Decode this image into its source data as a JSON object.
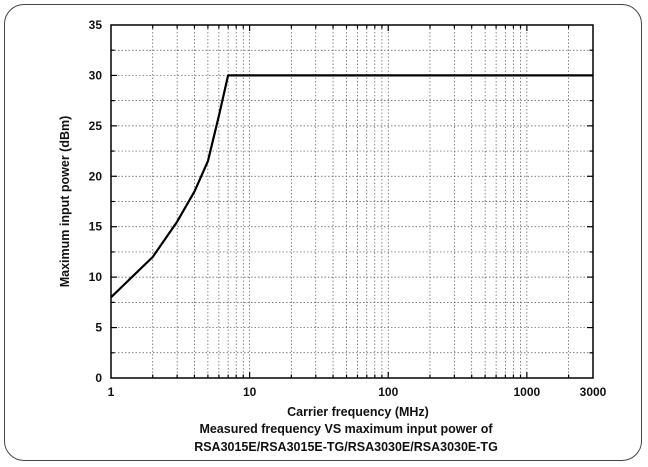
{
  "chart_data": {
    "type": "line",
    "xlabel": "Carrier frequency (MHz)",
    "ylabel": "Maximum input power (dBm)",
    "caption_lines": [
      "Measured frequency VS maximum input power of",
      "RSA3015E/RSA3015E-TG/RSA3030E/RSA3030E-TG"
    ],
    "x_scale": "log",
    "xlim": [
      1,
      3000
    ],
    "ylim": [
      0,
      35
    ],
    "x_ticks": [
      1,
      10,
      100,
      1000,
      3000
    ],
    "x_tick_labels": [
      "1",
      "10",
      "100",
      "1000",
      "3000"
    ],
    "y_ticks": [
      0,
      5,
      10,
      15,
      20,
      25,
      30,
      35
    ],
    "y_tick_labels": [
      "0",
      "5",
      "10",
      "15",
      "20",
      "25",
      "30",
      "35"
    ],
    "grid": true,
    "series": [
      {
        "x": [
          1,
          2,
          3,
          4,
          5,
          6,
          7,
          3000
        ],
        "y": [
          8,
          12,
          15.5,
          18.5,
          21.5,
          26,
          30,
          30
        ],
        "color": "#000000"
      }
    ]
  }
}
